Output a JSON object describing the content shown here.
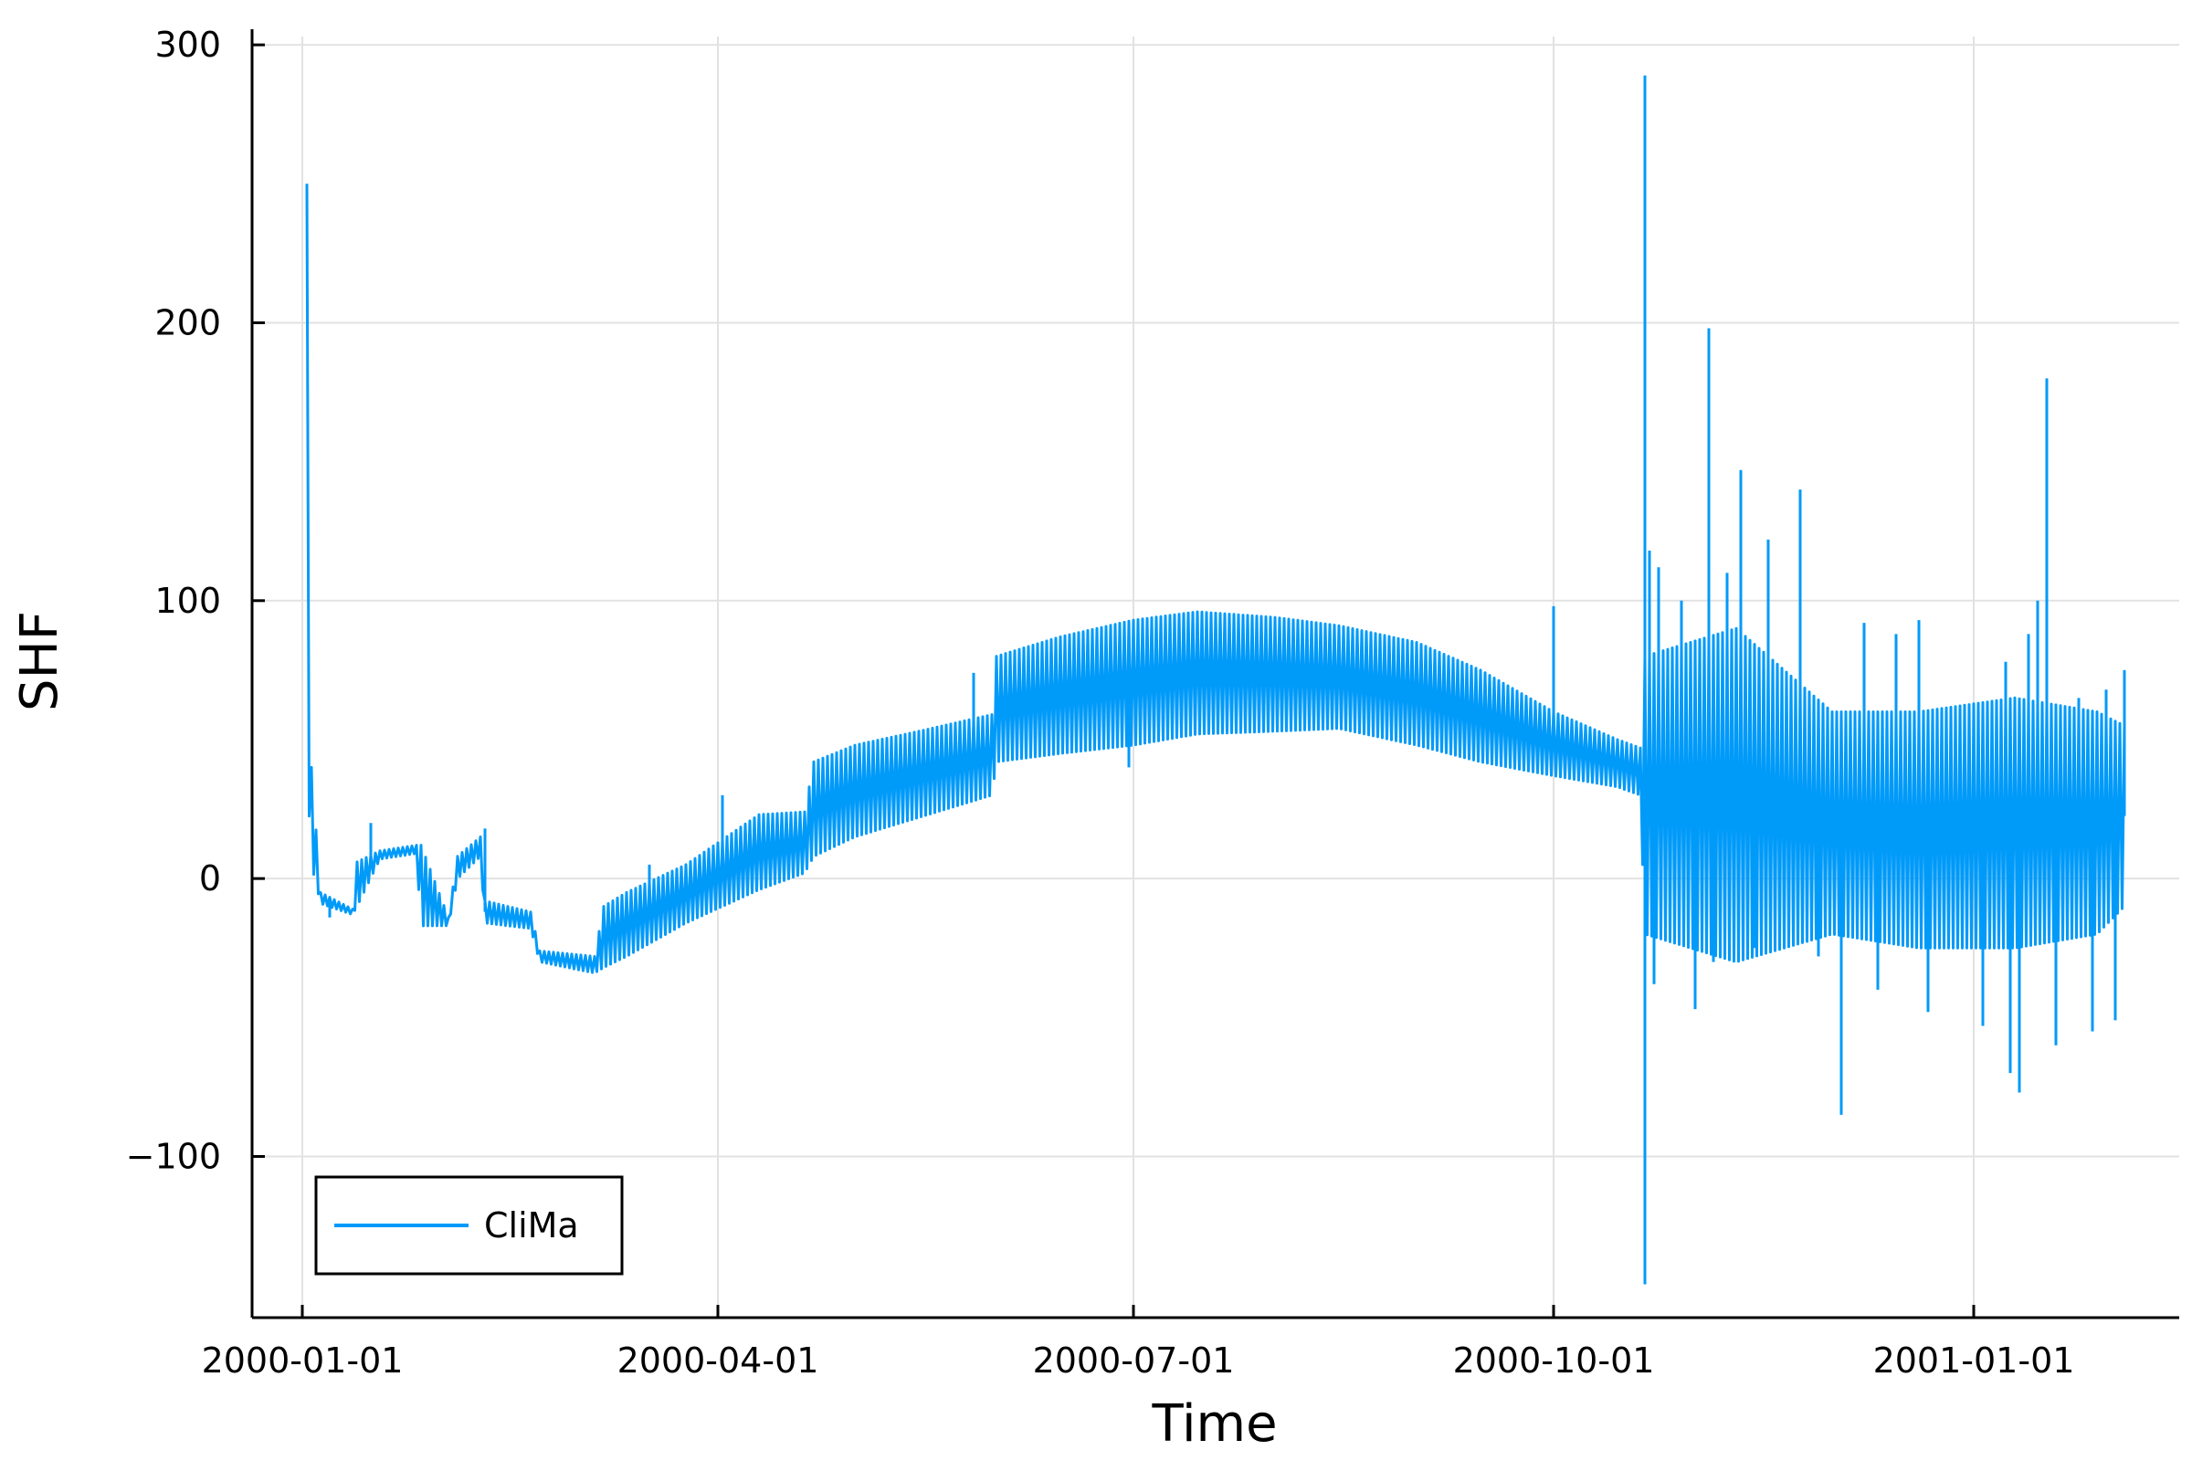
{
  "chart_data": {
    "type": "line",
    "title": "",
    "xlabel": "Time",
    "ylabel": "SHF",
    "x_tick_labels": [
      "2000-01-01",
      "2000-04-01",
      "2000-07-01",
      "2000-10-01",
      "2001-01-01"
    ],
    "x_tick_dates": [
      "2000-01-01",
      "2000-04-01",
      "2000-07-01",
      "2000-10-01",
      "2001-01-01"
    ],
    "y_tick_labels": [
      "−100",
      "0",
      "100",
      "200",
      "300"
    ],
    "y_tick_values": [
      -100,
      0,
      100,
      200,
      300
    ],
    "xlim": [
      "1999-12-21",
      "2001-02-15"
    ],
    "ylim": [
      -158,
      303
    ],
    "grid": true,
    "legend_position": "bottom-left",
    "series": [
      {
        "name": "CliMa",
        "color": "#009af9",
        "envelope": [
          {
            "date": "2000-01-02",
            "low": 40,
            "high": 250
          },
          {
            "date": "2000-01-03",
            "low": 5,
            "high": 40
          },
          {
            "date": "2000-01-05",
            "low": -9,
            "high": -5
          },
          {
            "date": "2000-01-12",
            "low": -13,
            "high": -11
          },
          {
            "date": "2000-01-13",
            "low": -10,
            "high": 6
          },
          {
            "date": "2000-01-18",
            "low": 7,
            "high": 10
          },
          {
            "date": "2000-01-26",
            "low": 9,
            "high": 12
          },
          {
            "date": "2000-01-27",
            "low": -17,
            "high": 12
          },
          {
            "date": "2000-02-02",
            "low": -17,
            "high": -14
          },
          {
            "date": "2000-02-04",
            "low": 0,
            "high": 8
          },
          {
            "date": "2000-02-09",
            "low": 8,
            "high": 15
          },
          {
            "date": "2000-02-10",
            "low": -16,
            "high": -8
          },
          {
            "date": "2000-02-20",
            "low": -18,
            "high": -12
          },
          {
            "date": "2000-02-22",
            "low": -30,
            "high": -26
          },
          {
            "date": "2000-03-05",
            "low": -34,
            "high": -28
          },
          {
            "date": "2000-03-07",
            "low": -32,
            "high": -10
          },
          {
            "date": "2000-03-12",
            "low": -28,
            "high": -5
          },
          {
            "date": "2000-03-25",
            "low": -16,
            "high": 5
          },
          {
            "date": "2000-04-10",
            "low": -4,
            "high": 23
          },
          {
            "date": "2000-04-20",
            "low": 2,
            "high": 24
          },
          {
            "date": "2000-04-22",
            "low": 8,
            "high": 42
          },
          {
            "date": "2000-05-01",
            "low": 15,
            "high": 48
          },
          {
            "date": "2000-05-15",
            "low": 22,
            "high": 53
          },
          {
            "date": "2000-05-31",
            "low": 30,
            "high": 59
          },
          {
            "date": "2000-06-01",
            "low": 42,
            "high": 80
          },
          {
            "date": "2000-06-15",
            "low": 45,
            "high": 87
          },
          {
            "date": "2000-07-01",
            "low": 48,
            "high": 93
          },
          {
            "date": "2000-07-15",
            "low": 52,
            "high": 96
          },
          {
            "date": "2000-08-01",
            "low": 53,
            "high": 94
          },
          {
            "date": "2000-08-15",
            "low": 54,
            "high": 91
          },
          {
            "date": "2000-09-01",
            "low": 48,
            "high": 85
          },
          {
            "date": "2000-09-15",
            "low": 42,
            "high": 75
          },
          {
            "date": "2000-10-01",
            "low": 37,
            "high": 60
          },
          {
            "date": "2000-10-15",
            "low": 33,
            "high": 50
          },
          {
            "date": "2000-10-20",
            "low": 30,
            "high": 47
          },
          {
            "date": "2000-10-21",
            "low": -20,
            "high": 80
          },
          {
            "date": "2000-11-10",
            "low": -30,
            "high": 90
          },
          {
            "date": "2000-12-01",
            "low": -20,
            "high": 60
          },
          {
            "date": "2000-12-20",
            "low": -25,
            "high": 60
          },
          {
            "date": "2001-01-10",
            "low": -25,
            "high": 65
          },
          {
            "date": "2001-01-28",
            "low": -20,
            "high": 60
          },
          {
            "date": "2001-02-03",
            "low": -10,
            "high": 55
          }
        ],
        "spikes": [
          {
            "date": "2000-01-07",
            "value": -14
          },
          {
            "date": "2000-01-16",
            "value": 20
          },
          {
            "date": "2000-02-10",
            "value": 18
          },
          {
            "date": "2000-03-17",
            "value": 5
          },
          {
            "date": "2000-04-02",
            "value": 30
          },
          {
            "date": "2000-05-27",
            "value": 74
          },
          {
            "date": "2000-06-30",
            "value": 40
          },
          {
            "date": "2000-10-01",
            "value": 98
          },
          {
            "date": "2000-10-21",
            "value": 289
          },
          {
            "date": "2000-10-21",
            "value": -146
          },
          {
            "date": "2000-10-22",
            "value": 118
          },
          {
            "date": "2000-10-23",
            "value": -38
          },
          {
            "date": "2000-10-24",
            "value": 112
          },
          {
            "date": "2000-10-29",
            "value": 100
          },
          {
            "date": "2000-11-01",
            "value": -47
          },
          {
            "date": "2000-11-04",
            "value": 198
          },
          {
            "date": "2000-11-05",
            "value": -30
          },
          {
            "date": "2000-11-08",
            "value": 110
          },
          {
            "date": "2000-11-11",
            "value": 147
          },
          {
            "date": "2000-11-14",
            "value": -25
          },
          {
            "date": "2000-11-17",
            "value": 122
          },
          {
            "date": "2000-11-24",
            "value": 140
          },
          {
            "date": "2000-11-28",
            "value": -28
          },
          {
            "date": "2000-12-03",
            "value": -85
          },
          {
            "date": "2000-12-08",
            "value": 92
          },
          {
            "date": "2000-12-11",
            "value": -40
          },
          {
            "date": "2000-12-15",
            "value": 88
          },
          {
            "date": "2000-12-20",
            "value": 93
          },
          {
            "date": "2000-12-22",
            "value": -48
          },
          {
            "date": "2001-01-01",
            "value": 60
          },
          {
            "date": "2001-01-03",
            "value": -53
          },
          {
            "date": "2001-01-08",
            "value": 78
          },
          {
            "date": "2001-01-09",
            "value": -70
          },
          {
            "date": "2001-01-11",
            "value": -77
          },
          {
            "date": "2001-01-13",
            "value": 88
          },
          {
            "date": "2001-01-15",
            "value": 100
          },
          {
            "date": "2001-01-17",
            "value": 180
          },
          {
            "date": "2001-01-19",
            "value": -60
          },
          {
            "date": "2001-01-24",
            "value": 65
          },
          {
            "date": "2001-01-27",
            "value": -55
          },
          {
            "date": "2001-01-30",
            "value": 68
          },
          {
            "date": "2001-02-01",
            "value": -51
          },
          {
            "date": "2001-02-03",
            "value": 75
          }
        ]
      }
    ]
  }
}
